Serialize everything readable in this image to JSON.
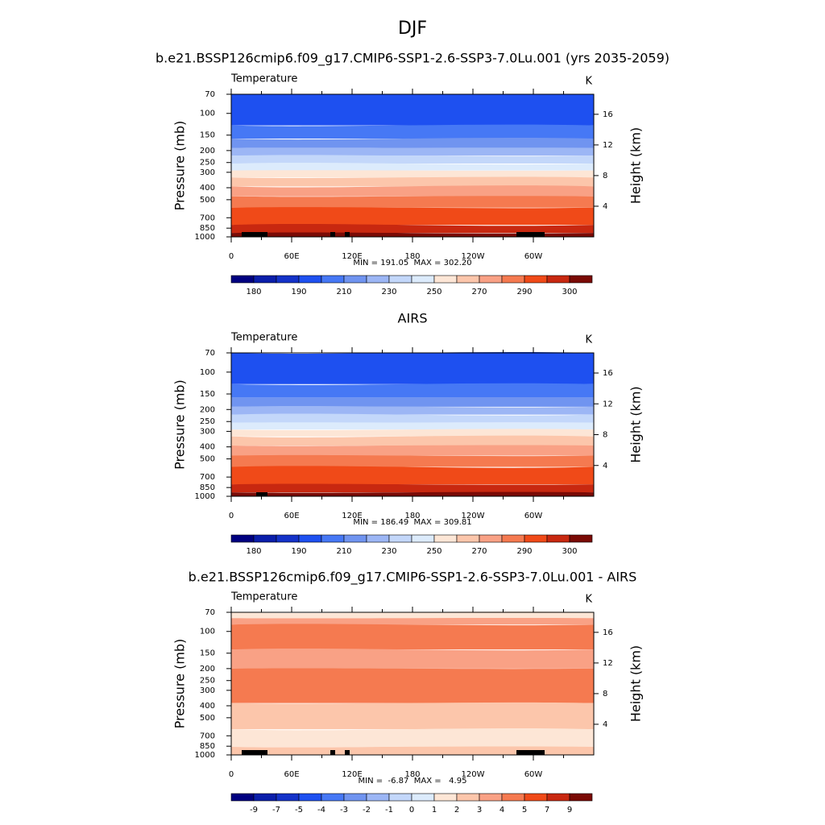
{
  "title": "DJF",
  "panels": [
    {
      "title": "b.e21.BSSP126cmip6.f09_g17.CMIP6-SSP1-2.6-SSP3-7.0Lu.001 (yrs 2035-2059)",
      "left_label": "Temperature",
      "right_label": "K",
      "ylabel": "Pressure (mb)",
      "y2label": "Height (km)",
      "log": true,
      "ylim": [
        1000,
        70
      ],
      "yticks": [
        70,
        100,
        150,
        200,
        250,
        300,
        400,
        500,
        700,
        850,
        1000
      ],
      "y2ticks": [
        4,
        8,
        12,
        16
      ],
      "xlim": [
        0,
        360
      ],
      "xticks": [
        0,
        {
          "value": 60,
          "label": "60E"
        },
        {
          "value": 120,
          "label": "120E"
        },
        180,
        {
          "value": 240,
          "label": "120W"
        },
        {
          "value": 300,
          "label": "60W"
        }
      ],
      "stats": "MIN = 191.05  MAX = 302.20",
      "colorbar": {
        "labels": [
          180,
          190,
          210,
          230,
          250,
          270,
          290,
          300
        ],
        "colors": [
          "#000080",
          "#0a1eaa",
          "#1432c8",
          "#1e50f0",
          "#4678f5",
          "#7094f0",
          "#9cb6f5",
          "#c3d7fa",
          "#dcebfc",
          "#fde6d6",
          "#fcc6ab",
          "#f9a185",
          "#f57a50",
          "#f04a18",
          "#c82810",
          "#7a0a05"
        ]
      }
    },
    {
      "title": "AIRS",
      "left_label": "Temperature",
      "right_label": "K",
      "ylabel": "Pressure (mb)",
      "y2label": "Height (km)",
      "log": true,
      "ylim": [
        1000,
        70
      ],
      "yticks": [
        70,
        100,
        150,
        200,
        250,
        300,
        400,
        500,
        700,
        850,
        1000
      ],
      "y2ticks": [
        4,
        8,
        12,
        16
      ],
      "xlim": [
        0,
        360
      ],
      "xticks": [
        0,
        {
          "value": 60,
          "label": "60E"
        },
        {
          "value": 120,
          "label": "120E"
        },
        180,
        {
          "value": 240,
          "label": "120W"
        },
        {
          "value": 300,
          "label": "60W"
        }
      ],
      "stats": "MIN = 186.49  MAX = 309.81",
      "colorbar": {
        "labels": [
          180,
          190,
          210,
          230,
          250,
          270,
          290,
          300
        ],
        "colors": [
          "#000080",
          "#0a1eaa",
          "#1432c8",
          "#1e50f0",
          "#4678f5",
          "#7094f0",
          "#9cb6f5",
          "#c3d7fa",
          "#dcebfc",
          "#fde6d6",
          "#fcc6ab",
          "#f9a185",
          "#f57a50",
          "#f04a18",
          "#c82810",
          "#7a0a05"
        ]
      }
    },
    {
      "title": "b.e21.BSSP126cmip6.f09_g17.CMIP6-SSP1-2.6-SSP3-7.0Lu.001 - AIRS",
      "left_label": "Temperature",
      "right_label": "K",
      "ylabel": "Pressure (mb)",
      "y2label": "Height (km)",
      "log": true,
      "ylim": [
        1000,
        70
      ],
      "yticks": [
        70,
        100,
        150,
        200,
        250,
        300,
        400,
        500,
        700,
        850,
        1000
      ],
      "y2ticks": [
        4,
        8,
        12,
        16
      ],
      "xlim": [
        0,
        360
      ],
      "xticks": [
        0,
        {
          "value": 60,
          "label": "60E"
        },
        {
          "value": 120,
          "label": "120E"
        },
        180,
        {
          "value": 240,
          "label": "120W"
        },
        {
          "value": 300,
          "label": "60W"
        }
      ],
      "stats": "MIN =  -6.87  MAX =   4.95",
      "colorbar": {
        "labels": [
          -9,
          -7,
          -5,
          -4,
          -3,
          -2,
          -1,
          0,
          1,
          2,
          3,
          4,
          5,
          7,
          9
        ],
        "colors": [
          "#000080",
          "#0a1eaa",
          "#1432c8",
          "#1e50f0",
          "#4678f5",
          "#7094f0",
          "#9cb6f5",
          "#c3d7fa",
          "#dcebfc",
          "#fde6d6",
          "#fcc6ab",
          "#f9a185",
          "#f57a50",
          "#f04a18",
          "#c82810",
          "#7a0a05"
        ]
      }
    }
  ]
}
